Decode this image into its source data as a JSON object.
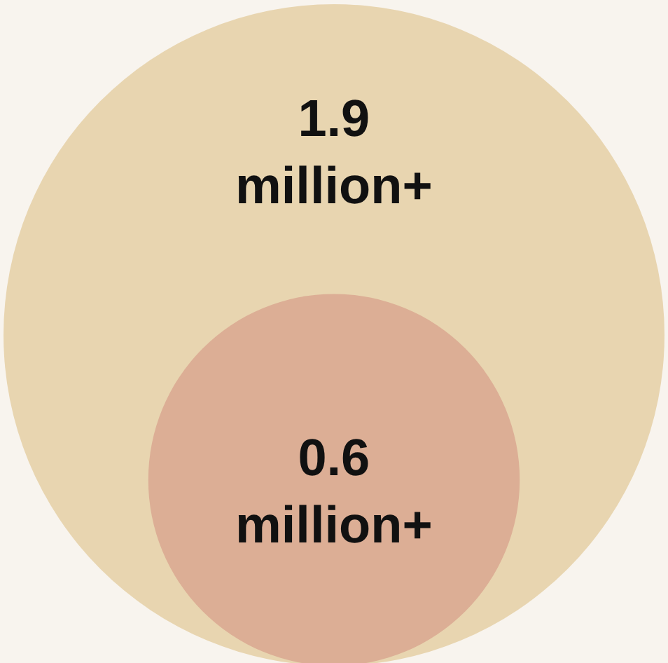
{
  "chart_data": {
    "type": "other",
    "categories": [
      null,
      null
    ],
    "values": [
      1.9,
      0.6
    ],
    "data_labels": true,
    "annotations": [
      "million+",
      "million+"
    ],
    "colors": [
      "#e8d5b0",
      "#dcae95"
    ]
  }
}
